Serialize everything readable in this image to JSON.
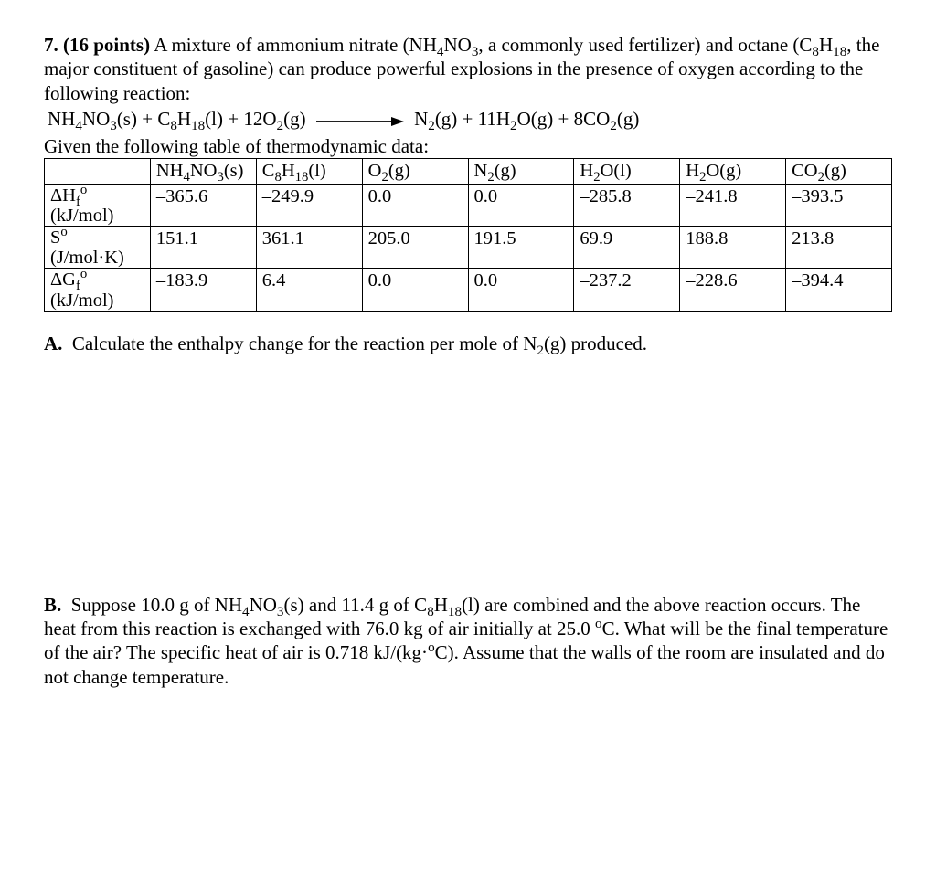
{
  "problem": {
    "number": "7.",
    "points": "(16 points)",
    "intro_html": "A mixture of ammonium nitrate (NH<sub>4</sub>NO<sub>3</sub>, a commonly used fertilizer) and octane (C<sub>8</sub>H<sub>18</sub>, the major constituent of gasoline) can produce powerful explosions in the presence of oxygen according to the following reaction:",
    "equation_left": "NH<sub>4</sub>NO<sub>3</sub>(s) + C<sub>8</sub>H<sub>18</sub>(l) + 12O<sub>2</sub>(g)",
    "equation_right": "N<sub>2</sub>(g) + 11H<sub>2</sub>O(g) + 8CO<sub>2</sub>(g)",
    "given_line": "Given the following table of thermodynamic data:"
  },
  "table": {
    "headers": [
      "",
      "NH<sub>4</sub>NO<sub>3</sub>(s)",
      "C<sub>8</sub>H<sub>18</sub>(l)",
      "O<sub>2</sub>(g)",
      "N<sub>2</sub>(g)",
      "H<sub>2</sub>O(l)",
      "H<sub>2</sub>O(g)",
      "CO<sub>2</sub>(g)"
    ],
    "rows": [
      {
        "label_html": "ΔH<sub>f</sub><sup>o</sup><br>(kJ/mol)",
        "cells": [
          "–365.6",
          "–249.9",
          "0.0",
          "0.0",
          "–285.8",
          "–241.8",
          "–393.5"
        ]
      },
      {
        "label_html": "S<sup>o</sup><br>(J/mol·K)",
        "cells": [
          "151.1",
          "361.1",
          "205.0",
          "191.5",
          "69.9",
          "188.8",
          "213.8"
        ]
      },
      {
        "label_html": "ΔG<sub>f</sub><sup>o</sup><br>(kJ/mol)",
        "cells": [
          "–183.9",
          "6.4",
          "0.0",
          "0.0",
          "–237.2",
          "–228.6",
          "–394.4"
        ]
      }
    ],
    "styling": {
      "border_color": "#000000",
      "font_size_pt": 15,
      "col_widths_pct": [
        12.5,
        12.5,
        12.5,
        12.5,
        12.5,
        12.5,
        12.5,
        12.5
      ]
    }
  },
  "parts": {
    "A": {
      "letter": "A.",
      "text_html": "Calculate the enthalpy change for the reaction per mole of N<sub>2</sub>(g) produced."
    },
    "B": {
      "letter": "B.",
      "text_html": "Suppose 10.0 g of NH<sub>4</sub>NO<sub>3</sub>(s) and 11.4 g of C<sub>8</sub>H<sub>18</sub>(l) are combined and the above reaction occurs. The heat from this reaction is exchanged with 76.0 kg of air initially at 25.0 <sup>o</sup>C. What will be the final temperature of the air? The specific heat of air is 0.718 kJ/(kg·<sup>o</sup>C). Assume that the walls of the room are insulated and do not change temperature."
    }
  },
  "colors": {
    "text": "#000000",
    "background": "#ffffff"
  }
}
